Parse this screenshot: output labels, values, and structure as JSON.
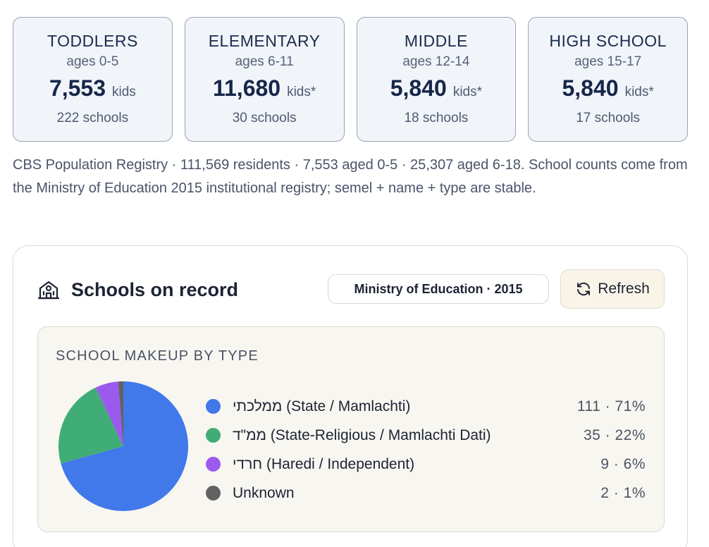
{
  "stats": [
    {
      "label": "TODDLERS",
      "ages": "ages 0-5",
      "count": "7,553",
      "unit": "kids",
      "schools": "222 schools"
    },
    {
      "label": "ELEMENTARY",
      "ages": "ages 6-11",
      "count": "11,680",
      "unit": "kids*",
      "schools": "30 schools"
    },
    {
      "label": "MIDDLE",
      "ages": "ages 12-14",
      "count": "5,840",
      "unit": "kids*",
      "schools": "18 schools"
    },
    {
      "label": "HIGH SCHOOL",
      "ages": "ages 15-17",
      "count": "5,840",
      "unit": "kids*",
      "schools": "17 schools"
    }
  ],
  "source_note": "CBS Population Registry · 111,569 residents · 7,553 aged 0-5 · 25,307 aged 6-18. School counts come from the Ministry of Education 2015 institutional registry; semel + name + type are stable.",
  "panel": {
    "icon": "school-building-icon",
    "title": "Schools on record",
    "source_pill": "Ministry of Education · 2015",
    "refresh_label": "Refresh",
    "refresh_icon": "refresh-icon"
  },
  "makeup": {
    "title": "SCHOOL MAKEUP BY TYPE"
  },
  "chart_data": {
    "type": "pie",
    "title": "SCHOOL MAKEUP BY TYPE",
    "slices": [
      {
        "label": "ממלכתי (State / Mamlachti)",
        "value": 111,
        "display": "111 · 71%",
        "color": "#4178ea"
      },
      {
        "label": "ממ\"ד (State-Religious / Mamlachti Dati)",
        "value": 35,
        "display": "35 · 22%",
        "color": "#40ad76"
      },
      {
        "label": "חרדי (Haredi / Independent)",
        "value": 9,
        "display": "9 · 6%",
        "color": "#9c59ee"
      },
      {
        "label": "Unknown",
        "value": 2,
        "display": "2 · 1%",
        "color": "#626262"
      }
    ],
    "legend": "right"
  }
}
